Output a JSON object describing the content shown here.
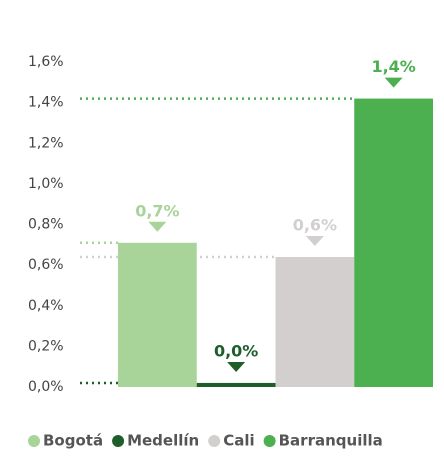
{
  "chart_data": {
    "type": "bar",
    "categories": [
      "Bogotá",
      "Medellín",
      "Cali",
      "Barranquilla"
    ],
    "values": [
      0.71,
      0.02,
      0.64,
      1.42
    ],
    "value_labels": [
      "0,7%",
      "0,0%",
      "0,6%",
      "1,4%"
    ],
    "colors": [
      "#a8d49a",
      "#1e5e2a",
      "#d3cfcf",
      "#4caf50"
    ],
    "ylim": [
      0,
      1.6
    ],
    "yticks": [
      {
        "value": 0,
        "label": "0,0%"
      },
      {
        "value": 0.2,
        "label": "0,2%"
      },
      {
        "value": 0.4,
        "label": "0,4%"
      },
      {
        "value": 0.6,
        "label": "0,6%"
      },
      {
        "value": 0.8,
        "label": "0,8%"
      },
      {
        "value": 1.0,
        "label": "1,0%"
      },
      {
        "value": 1.2,
        "label": "1,2%"
      },
      {
        "value": 1.4,
        "label": "1,4%"
      },
      {
        "value": 1.6,
        "label": "1,6%"
      }
    ],
    "grid": false
  }
}
